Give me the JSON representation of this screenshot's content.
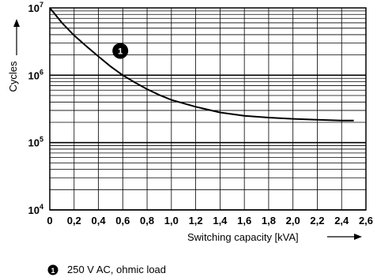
{
  "chart_data": {
    "type": "line",
    "xlabel": "Switching capacity [kVA]",
    "ylabel": "Cycles",
    "xlim": [
      0,
      2.6
    ],
    "ylim_log10": [
      4,
      7
    ],
    "y_scale": "log",
    "x_ticks": [
      "0",
      "0,2",
      "0,4",
      "0,6",
      "0,8",
      "1,0",
      "1,2",
      "1,4",
      "1,6",
      "1,8",
      "2,0",
      "2,2",
      "2,4",
      "2,6"
    ],
    "y_ticks": [
      {
        "base": "10",
        "exp": "4",
        "value": 10000
      },
      {
        "base": "10",
        "exp": "5",
        "value": 100000
      },
      {
        "base": "10",
        "exp": "6",
        "value": 1000000
      },
      {
        "base": "10",
        "exp": "7",
        "value": 10000000
      }
    ],
    "grid": true,
    "series": [
      {
        "marker": "1",
        "color": "#000000",
        "x": [
          0.0,
          0.1,
          0.2,
          0.3,
          0.4,
          0.5,
          0.6,
          0.7,
          0.8,
          0.9,
          1.0,
          1.2,
          1.4,
          1.6,
          1.8,
          2.0,
          2.2,
          2.4,
          2.5
        ],
        "y": [
          10000000,
          6000000,
          3900000,
          2700000,
          1900000,
          1350000,
          1000000,
          780000,
          620000,
          510000,
          430000,
          340000,
          280000,
          250000,
          235000,
          225000,
          218000,
          212000,
          212000
        ]
      }
    ],
    "annotations": [
      {
        "label": "1",
        "x": 0.58,
        "y": 2300000
      }
    ]
  },
  "legend": [
    {
      "marker": "1",
      "text": "250 V AC, ohmic load"
    }
  ]
}
